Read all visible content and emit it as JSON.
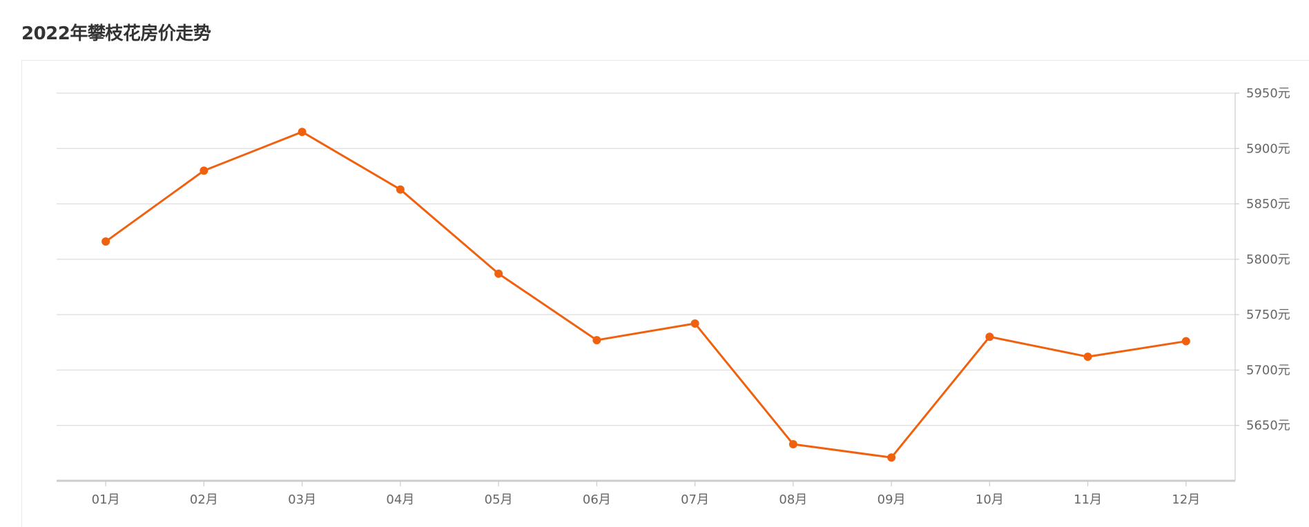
{
  "page": {
    "title": "2022年攀枝花房价走势"
  },
  "chart_data": {
    "type": "line",
    "title": "2022年攀枝花房价走势",
    "xlabel": "",
    "ylabel": "",
    "categories": [
      "01月",
      "02月",
      "03月",
      "04月",
      "05月",
      "06月",
      "07月",
      "08月",
      "09月",
      "10月",
      "11月",
      "12月"
    ],
    "series": [
      {
        "values": [
          5816,
          5880,
          5915,
          5863,
          5787,
          5727,
          5742,
          5633,
          5621,
          5730,
          5712,
          5726
        ]
      }
    ],
    "ylim": [
      5600,
      5950
    ],
    "yticks": [
      5650,
      5700,
      5750,
      5800,
      5850,
      5900,
      5950
    ],
    "ytick_suffix": "元",
    "y_axis_position": "right",
    "grid": true,
    "legend": "none",
    "colors": {
      "line": "#f0610f",
      "grid": "#dcdcdc",
      "axis": "#cccccc",
      "tick_text": "#666666"
    }
  }
}
